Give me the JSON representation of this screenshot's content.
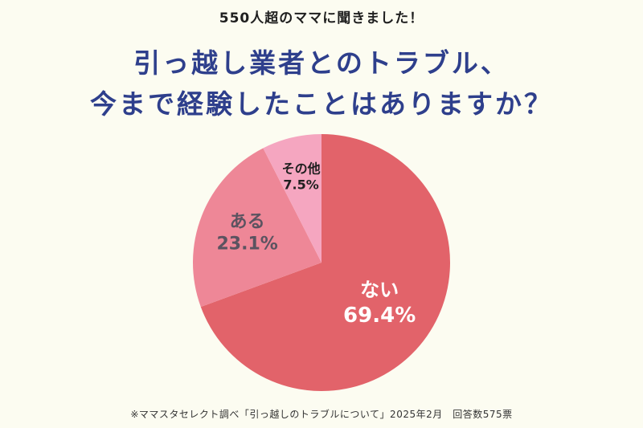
{
  "header": {
    "banner": "550人超のママに聞きました！",
    "title_line1": "引っ越し業者とのトラブル、",
    "title_line2": "今まで経験したことはありますか？"
  },
  "footer": {
    "note": "※ママスタセレクト調べ「引っ越しのトラブルについて」2025年2月　回答数575票"
  },
  "chart_data": {
    "type": "pie",
    "title": "引っ越し業者とのトラブル、今まで経験したことはありますか？",
    "slices": [
      {
        "label": "ない",
        "value": 69.4,
        "display": "69.4%",
        "color": "#e2636a",
        "text_color": "#ffffff"
      },
      {
        "label": "ある",
        "value": 23.1,
        "display": "23.1%",
        "color": "#ee8797",
        "text_color": "#5b5360"
      },
      {
        "label": "その他",
        "value": 7.5,
        "display": "7.5%",
        "color": "#f5a6c0",
        "text_color": "#1f1f1f"
      }
    ]
  }
}
